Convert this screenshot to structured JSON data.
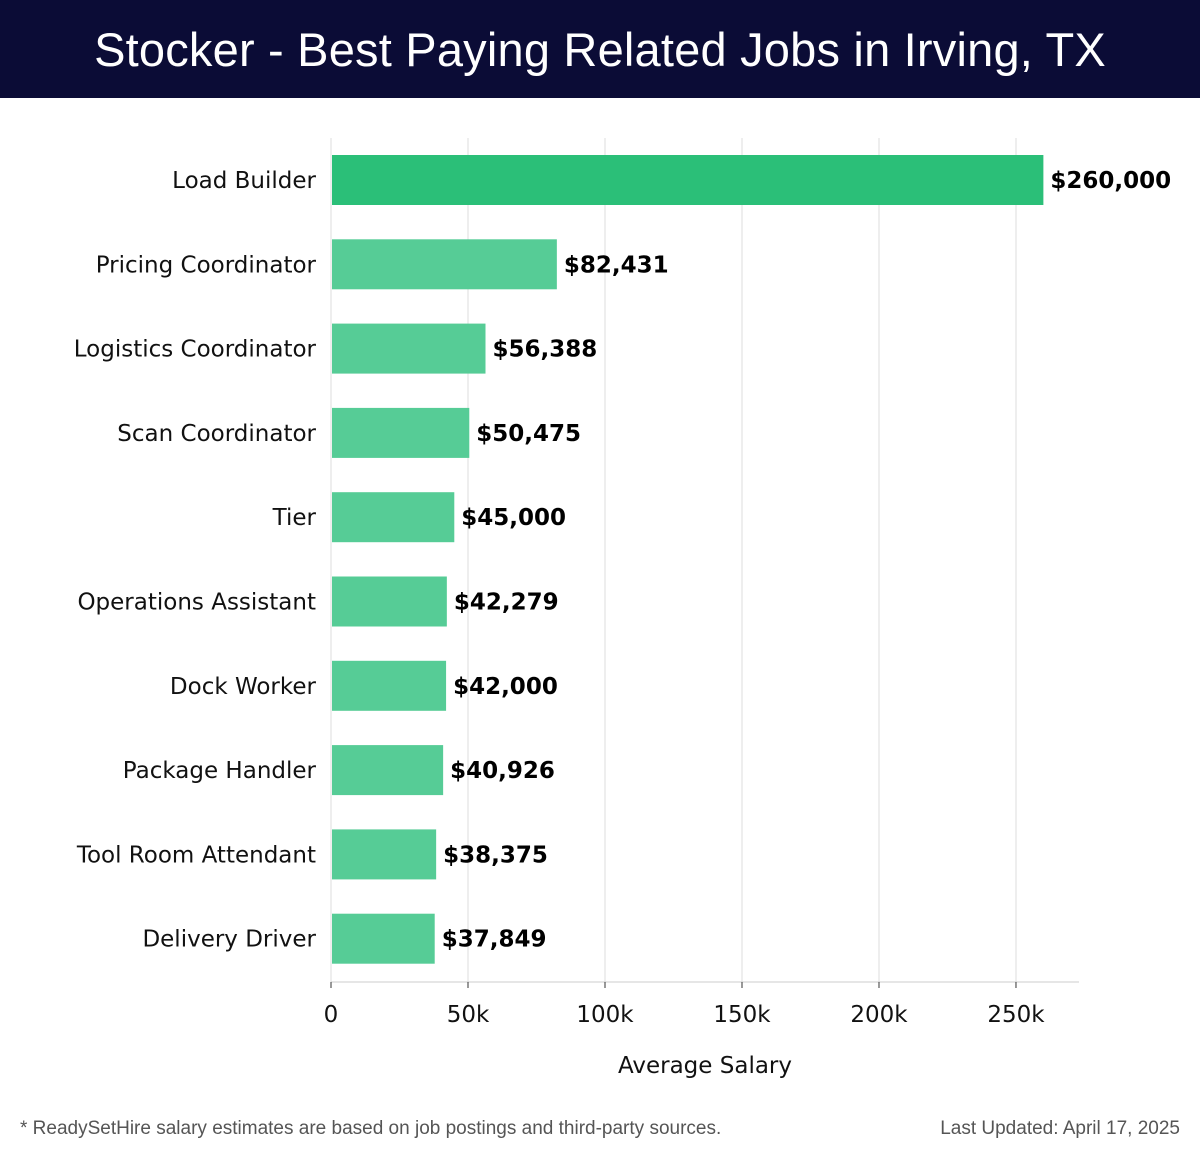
{
  "header": {
    "title": "Stocker - Best Paying Related Jobs in Irving, TX"
  },
  "chart_data": {
    "type": "bar",
    "orientation": "horizontal",
    "title": "Stocker - Best Paying Related Jobs in Irving, TX",
    "xlabel": "Average Salary",
    "ylabel": "",
    "categories": [
      "Load Builder",
      "Pricing Coordinator",
      "Logistics Coordinator",
      "Scan Coordinator",
      "Tier",
      "Operations Assistant",
      "Dock Worker",
      "Package Handler",
      "Tool Room Attendant",
      "Delivery Driver"
    ],
    "values": [
      260000,
      82431,
      56388,
      50475,
      45000,
      42279,
      42000,
      40926,
      38375,
      37849
    ],
    "value_labels": [
      "$260,000",
      "$82,431",
      "$56,388",
      "$50,475",
      "$45,000",
      "$42,279",
      "$42,000",
      "$40,926",
      "$38,375",
      "$37,849"
    ],
    "xlim": [
      0,
      273000
    ],
    "xticks": [
      0,
      50000,
      100000,
      150000,
      200000,
      250000
    ],
    "xtick_labels": [
      "0",
      "50k",
      "100k",
      "150k",
      "200k",
      "250k"
    ],
    "grid": true,
    "colors": {
      "highlight": "#2bbf78",
      "bar": "#56cc96",
      "grid": "#dddddd",
      "header_bg": "#0b0c36"
    }
  },
  "footer": {
    "note": "* ReadySetHire salary estimates are based on job postings and third-party sources.",
    "updated": "Last Updated: April 17, 2025"
  }
}
